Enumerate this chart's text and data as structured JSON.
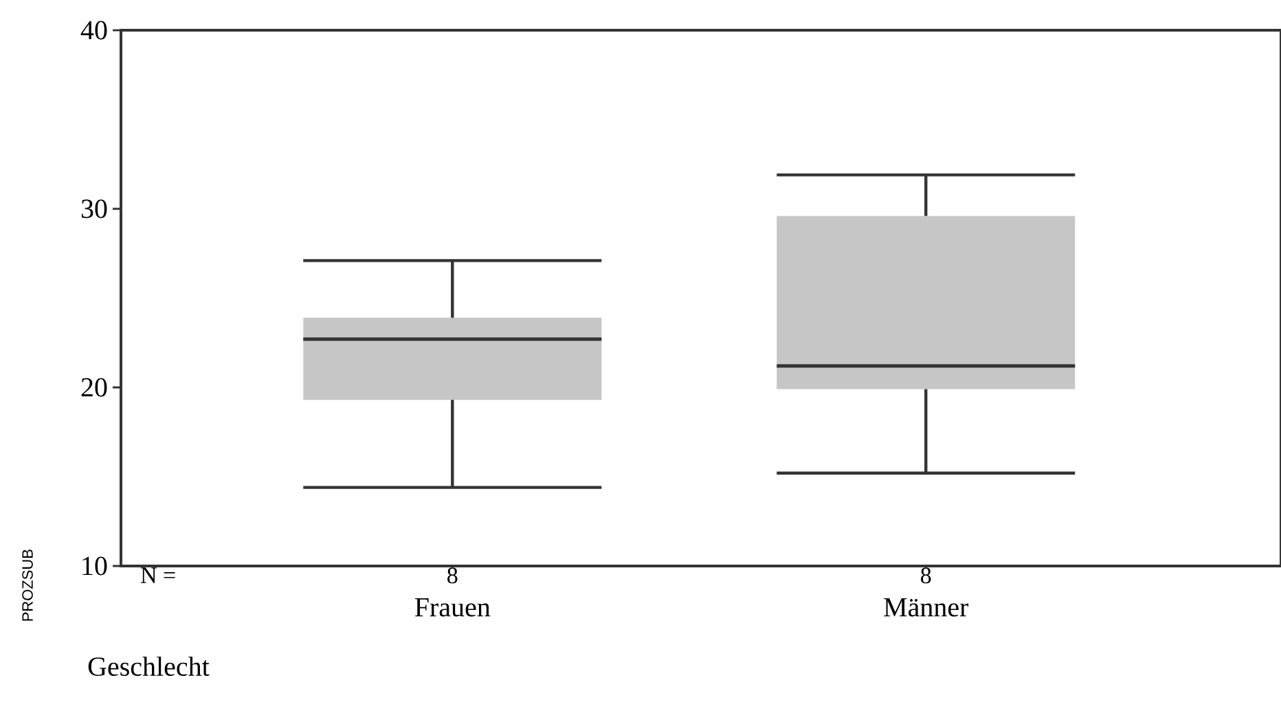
{
  "chart_data": {
    "type": "box",
    "ylabel": "PROZSUB",
    "xlabel": "Geschlecht",
    "categories": [
      "Frauen",
      "Männer"
    ],
    "boxes": [
      {
        "low": 14.4,
        "q1": 19.3,
        "median": 22.7,
        "q3": 23.9,
        "high": 27.1
      },
      {
        "low": 15.2,
        "q1": 19.9,
        "median": 21.2,
        "q3": 29.6,
        "high": 31.9
      }
    ],
    "color": "#c6c6c6",
    "ylim": [
      10,
      40
    ],
    "yticks": [
      10,
      20,
      30,
      40
    ],
    "grid": false,
    "annotations": [
      "N =",
      "8",
      "8"
    ]
  }
}
